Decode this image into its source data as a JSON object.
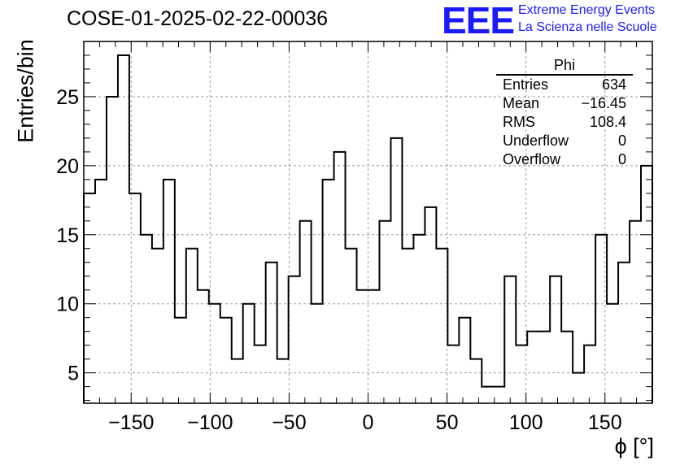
{
  "title": "COSE-01-2025-02-22-00036",
  "logo": {
    "mark": "EEE",
    "line1": "Extreme Energy Events",
    "line2": "La Scienza nelle Scuole",
    "color": "#1a1aff"
  },
  "stats_box": {
    "title": "Phi",
    "rows": [
      {
        "label": "Entries",
        "value": "634"
      },
      {
        "label": "Mean",
        "value": "−16.45"
      },
      {
        "label": "RMS",
        "value": "108.4"
      },
      {
        "label": "Underflow",
        "value": "0"
      },
      {
        "label": "Overflow",
        "value": "0"
      }
    ]
  },
  "chart_data": {
    "type": "histogram",
    "title": "COSE-01-2025-02-22-00036",
    "xlabel": "ϕ [°]",
    "ylabel": "Entries/bin",
    "xlim": [
      -180,
      180
    ],
    "ylim": [
      2.8,
      29
    ],
    "bin_width": 7.2,
    "x_ticks": [
      -150,
      -100,
      -50,
      0,
      50,
      100,
      150
    ],
    "x_tick_labels": [
      "−150",
      "−100",
      "−50",
      "0",
      "50",
      "100",
      "150"
    ],
    "y_ticks": [
      5,
      10,
      15,
      20,
      25
    ],
    "y_tick_labels": [
      "5",
      "10",
      "15",
      "20",
      "25"
    ],
    "grid": true,
    "values": [
      18,
      19,
      25,
      28,
      18,
      15,
      14,
      19,
      9,
      14,
      11,
      10,
      9,
      6,
      10,
      7,
      13,
      6,
      12,
      16,
      10,
      19,
      21,
      14,
      11,
      11,
      16,
      22,
      14,
      15,
      17,
      14,
      7,
      9,
      6,
      4,
      4,
      12,
      7,
      8,
      8,
      12,
      8,
      5,
      7,
      15,
      10,
      13,
      16,
      20
    ],
    "line_color": "#000000"
  }
}
